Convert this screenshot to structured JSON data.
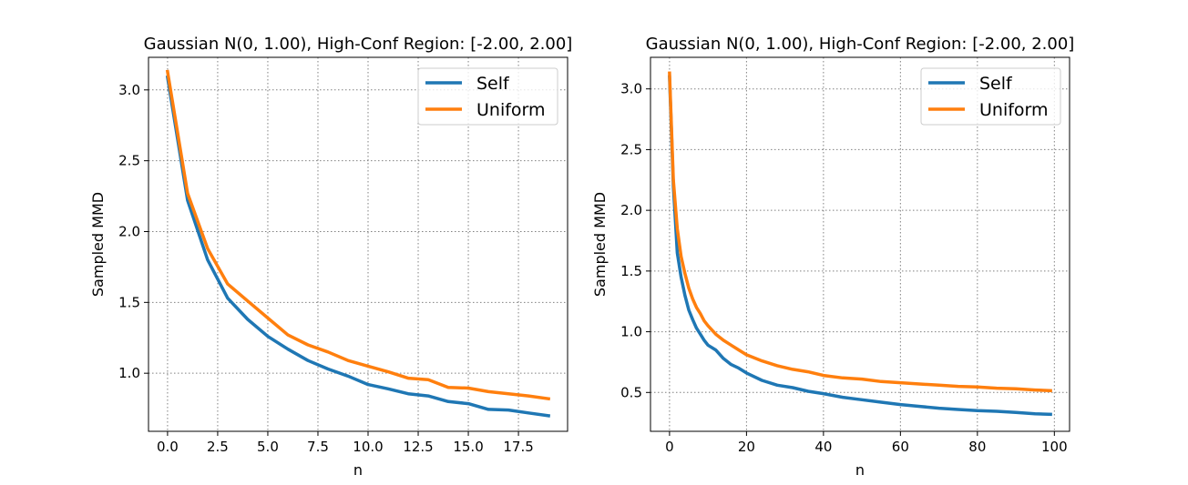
{
  "chart_data": [
    {
      "type": "line",
      "title": "Gaussian N(0, 1.00), High-Conf Region: [-2.00, 2.00]",
      "xlabel": "n",
      "ylabel": "Sampled MMD",
      "xlim": [
        -0.95,
        19.95
      ],
      "ylim": [
        0.59,
        3.23
      ],
      "xticks": [
        0,
        2.5,
        5,
        7.5,
        10,
        12.5,
        15,
        17.5
      ],
      "xtick_labels": [
        "0.0",
        "2.5",
        "5.0",
        "7.5",
        "10.0",
        "12.5",
        "15.0",
        "17.5"
      ],
      "yticks": [
        1.0,
        1.5,
        2.0,
        2.5,
        3.0
      ],
      "ytick_labels": [
        "1.0",
        "1.5",
        "2.0",
        "2.5",
        "3.0"
      ],
      "grid": true,
      "legend": "top-right",
      "series": [
        {
          "name": "Self",
          "color": "#1f77b4",
          "x": [
            0,
            1,
            2,
            3,
            4,
            5,
            6,
            7,
            8,
            9,
            10,
            11,
            12,
            13,
            14,
            15,
            16,
            17,
            18,
            19
          ],
          "y": [
            3.09,
            2.22,
            1.8,
            1.53,
            1.38,
            1.26,
            1.17,
            1.09,
            1.03,
            0.98,
            0.92,
            0.89,
            0.855,
            0.84,
            0.8,
            0.785,
            0.745,
            0.74,
            0.72,
            0.7
          ]
        },
        {
          "name": "Uniform",
          "color": "#ff7f0e",
          "x": [
            0,
            1,
            2,
            3,
            4,
            5,
            6,
            7,
            8,
            9,
            10,
            11,
            12,
            13,
            14,
            15,
            16,
            17,
            18,
            19
          ],
          "y": [
            3.13,
            2.27,
            1.88,
            1.63,
            1.51,
            1.39,
            1.27,
            1.2,
            1.15,
            1.09,
            1.05,
            1.01,
            0.965,
            0.955,
            0.9,
            0.895,
            0.87,
            0.855,
            0.84,
            0.82
          ]
        }
      ]
    },
    {
      "type": "line",
      "title": "Gaussian N(0, 1.00), High-Conf Region: [-2.00, 2.00]",
      "xlabel": "n",
      "ylabel": "Sampled MMD",
      "xlim": [
        -4.95,
        103.95
      ],
      "ylim": [
        0.18,
        3.26
      ],
      "xticks": [
        0,
        20,
        40,
        60,
        80,
        100
      ],
      "xtick_labels": [
        "0",
        "20",
        "40",
        "60",
        "80",
        "100"
      ],
      "yticks": [
        0.5,
        1.0,
        1.5,
        2.0,
        2.5,
        3.0
      ],
      "ytick_labels": [
        "0.5",
        "1.0",
        "1.5",
        "2.0",
        "2.5",
        "3.0"
      ],
      "grid": true,
      "legend": "top-right",
      "series": [
        {
          "name": "Self",
          "color": "#1f77b4",
          "x": [
            0,
            1,
            2,
            3,
            4,
            5,
            6,
            7,
            8,
            9,
            10,
            12,
            14,
            16,
            18,
            20,
            24,
            28,
            32,
            36,
            40,
            45,
            50,
            55,
            60,
            65,
            70,
            75,
            80,
            85,
            90,
            95,
            99
          ],
          "y": [
            3.1,
            2.2,
            1.65,
            1.45,
            1.3,
            1.18,
            1.1,
            1.03,
            0.98,
            0.93,
            0.89,
            0.85,
            0.78,
            0.73,
            0.7,
            0.66,
            0.6,
            0.56,
            0.54,
            0.51,
            0.49,
            0.46,
            0.44,
            0.42,
            0.4,
            0.385,
            0.37,
            0.36,
            0.35,
            0.345,
            0.335,
            0.325,
            0.32
          ]
        },
        {
          "name": "Uniform",
          "color": "#ff7f0e",
          "x": [
            0,
            1,
            2,
            3,
            4,
            5,
            6,
            7,
            8,
            9,
            10,
            12,
            14,
            16,
            18,
            20,
            24,
            28,
            32,
            36,
            40,
            45,
            50,
            55,
            60,
            65,
            70,
            75,
            80,
            85,
            90,
            95,
            99
          ],
          "y": [
            3.13,
            2.25,
            1.85,
            1.62,
            1.48,
            1.36,
            1.27,
            1.2,
            1.15,
            1.09,
            1.05,
            0.98,
            0.93,
            0.89,
            0.85,
            0.81,
            0.76,
            0.72,
            0.69,
            0.67,
            0.64,
            0.62,
            0.61,
            0.59,
            0.58,
            0.57,
            0.56,
            0.55,
            0.545,
            0.535,
            0.53,
            0.52,
            0.515
          ]
        }
      ]
    }
  ]
}
